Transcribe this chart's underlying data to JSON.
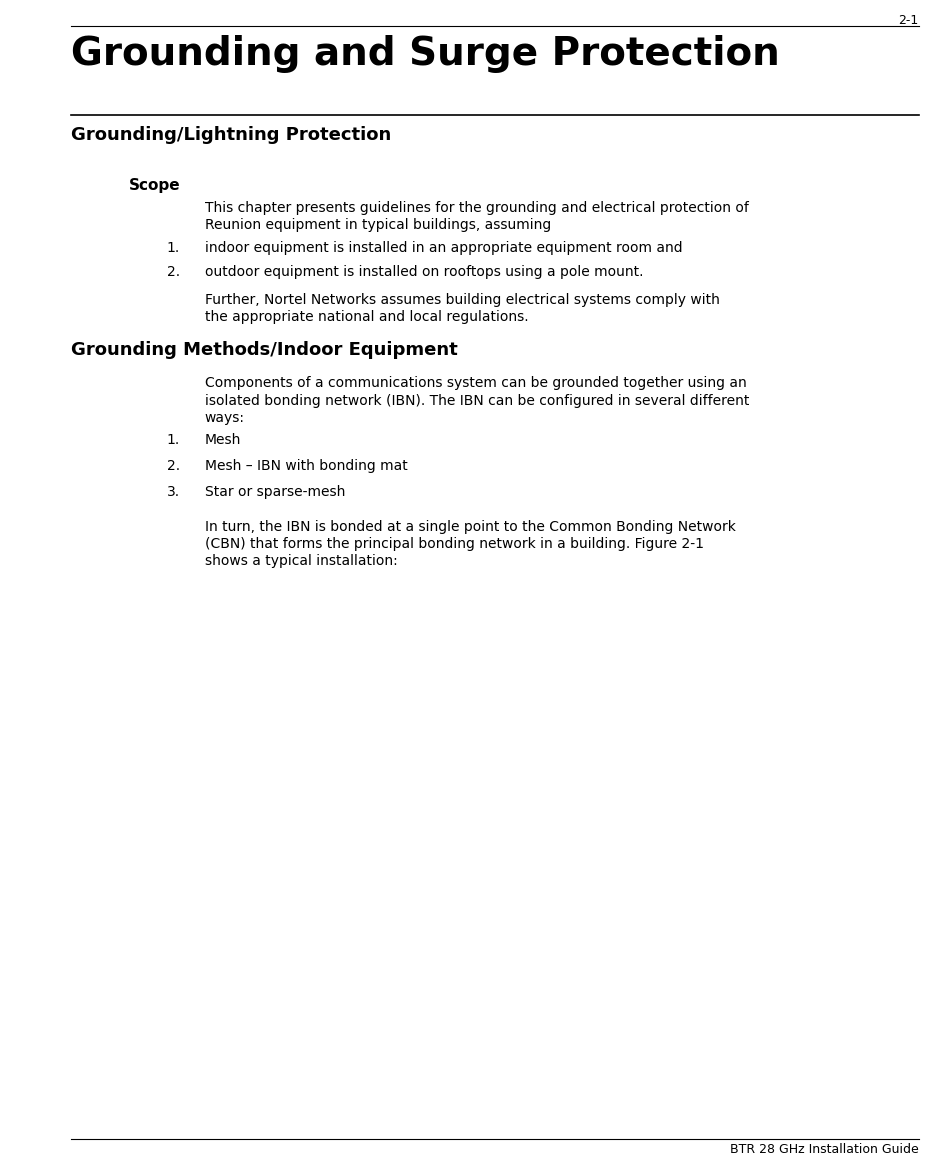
{
  "page_number": "2-1",
  "chapter_title": "Grounding and Surge Protection",
  "section1_title": "Grounding/Lightning Protection",
  "subsection1_title": "Scope",
  "scope_line1": "This chapter presents guidelines for the grounding and electrical protection of",
  "scope_line2": "Reunion equipment in typical buildings, assuming",
  "scope_list": [
    "indoor equipment is installed in an appropriate equipment room and",
    "outdoor equipment is installed on rooftops using a pole mount."
  ],
  "scope_para2_line1": "Further, Nortel Networks assumes building electrical systems comply with",
  "scope_para2_line2": "the appropriate national and local regulations.",
  "section2_title": "Grounding Methods/Indoor Equipment",
  "gm_line1": "Components of a communications system can be grounded together using an",
  "gm_line2": "isolated bonding network (IBN). The IBN can be configured in several different",
  "gm_line3": "ways:",
  "gm_list": [
    "Mesh",
    "Mesh – IBN with bonding mat",
    "Star or sparse-mesh"
  ],
  "gm_para2_line1": "In turn, the IBN is bonded at a single point to the Common Bonding Network",
  "gm_para2_line2": "(CBN) that forms the principal bonding network in a building. Figure 2-1",
  "gm_para2_line3": "shows a typical installation:",
  "footer_text": "BTR 28 GHz Installation Guide",
  "bg_color": "#ffffff",
  "text_color": "#000000",
  "page_width": 9.52,
  "page_height": 11.69,
  "dpi": 100
}
